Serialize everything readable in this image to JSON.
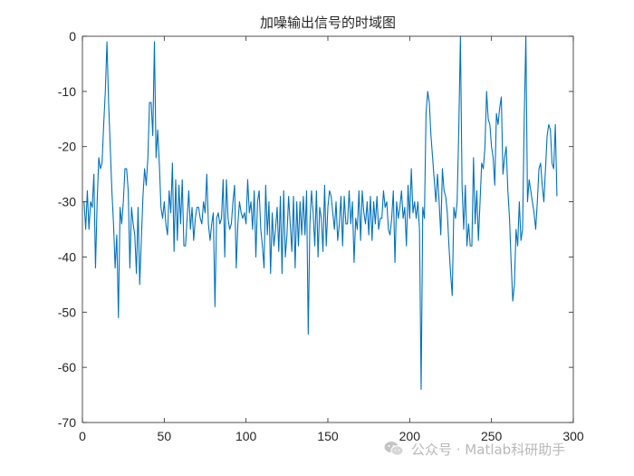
{
  "chart_data": {
    "type": "line",
    "title": "加噪输出信号的时域图",
    "xlabel": "",
    "ylabel": "",
    "xlim": [
      0,
      300
    ],
    "ylim": [
      -70,
      0
    ],
    "xticks": [
      0,
      50,
      100,
      150,
      200,
      250,
      300
    ],
    "yticks": [
      0,
      -10,
      -20,
      -30,
      -40,
      -50,
      -60,
      -70
    ],
    "grid": false,
    "series": [
      {
        "color": "#0072BD",
        "values": [
          -30,
          -35,
          -28,
          -35,
          -30,
          -31,
          -25,
          -42,
          -30,
          -22,
          -24,
          -23,
          -16,
          -10,
          -1,
          -12,
          -20,
          -28,
          -34,
          -42,
          -36,
          -51,
          -31,
          -34,
          -30,
          -24,
          -24,
          -28,
          -42,
          -31,
          -34,
          -36,
          -43,
          -31,
          -45,
          -37,
          -29,
          -24,
          -27,
          -22,
          -12,
          -12,
          -18,
          -1,
          -22,
          -17,
          -23,
          -31,
          -33,
          -30,
          -34,
          -36,
          -28,
          -32,
          -23,
          -39,
          -26,
          -37,
          -27,
          -34,
          -26,
          -38,
          -38,
          -33,
          -28,
          -35,
          -31,
          -37,
          -33,
          -31,
          -31,
          -33,
          -34,
          -30,
          -32,
          -25,
          -34,
          -37,
          -34,
          -32,
          -49,
          -33,
          -32,
          -34,
          -33,
          -26,
          -40,
          -26,
          -33,
          -35,
          -34,
          -30,
          -27,
          -42,
          -34,
          -30,
          -32,
          -33,
          -32,
          -34,
          -26,
          -32,
          -30,
          -35,
          -28,
          -40,
          -30,
          -28,
          -35,
          -38,
          -42,
          -27,
          -36,
          -30,
          -43,
          -32,
          -38,
          -35,
          -31,
          -39,
          -29,
          -43,
          -28,
          -40,
          -36,
          -29,
          -34,
          -39,
          -29,
          -42,
          -30,
          -38,
          -30,
          -36,
          -29,
          -36,
          -28,
          -54,
          -34,
          -28,
          -32,
          -38,
          -28,
          -40,
          -31,
          -33,
          -39,
          -27,
          -38,
          -31,
          -28,
          -29,
          -32,
          -35,
          -30,
          -37,
          -34,
          -29,
          -38,
          -29,
          -34,
          -34,
          -28,
          -34,
          -30,
          -41,
          -33,
          -35,
          -28,
          -37,
          -28,
          -32,
          -34,
          -30,
          -36,
          -29,
          -37,
          -30,
          -34,
          -29,
          -35,
          -33,
          -33,
          -28,
          -31,
          -30,
          -35,
          -36,
          -33,
          -28,
          -41,
          -30,
          -33,
          -31,
          -28,
          -33,
          -31,
          -38,
          -27,
          -33,
          -24,
          -32,
          -30,
          -33,
          -30,
          -35,
          -64,
          -31,
          -33,
          -14,
          -10,
          -12,
          -18,
          -22,
          -26,
          -30,
          -25,
          -30,
          -36,
          -24,
          -28,
          -29,
          -32,
          -38,
          -43,
          -47,
          -31,
          -33,
          -30,
          -17,
          0,
          -27,
          -35,
          -27,
          -38,
          -34,
          -38,
          -38,
          -22,
          -34,
          -28,
          -37,
          -30,
          -23,
          -24,
          -20,
          -10,
          -15,
          -16,
          -20,
          -22,
          -27,
          -14,
          -16,
          -13,
          -11,
          -25,
          -22,
          -20,
          -28,
          -33,
          -41,
          -48,
          -45,
          -35,
          -38,
          -30,
          -37,
          -35,
          -15,
          0,
          -30,
          -26,
          -28,
          -30,
          -32,
          -35,
          -30,
          -24,
          -23,
          -27,
          -30,
          -24,
          -18,
          -16,
          -17,
          -23,
          -24,
          -16,
          -29
        ]
      }
    ]
  },
  "watermark": {
    "icon": "wechat-icon",
    "text": "公众号 · Matlab科研助手"
  }
}
